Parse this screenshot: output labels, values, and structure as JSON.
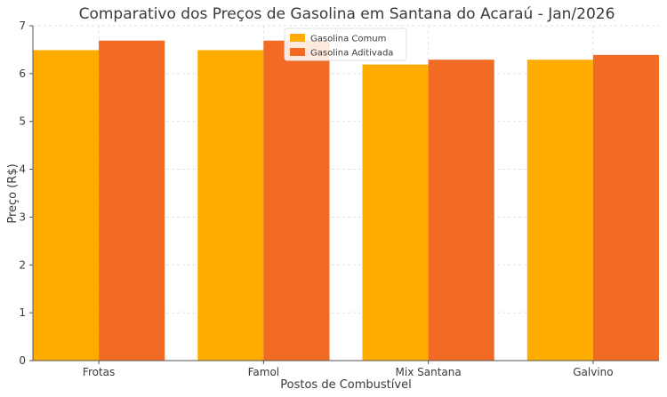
{
  "chart_data": {
    "type": "bar",
    "title": "Comparativo dos Preços de Gasolina em Santana do Acaraú - Jan/2026",
    "xlabel": "Postos de Combustível",
    "ylabel": "Preço (R$)",
    "categories": [
      "Frotas",
      "Famol",
      "Mix Santana",
      "Galvino"
    ],
    "series": [
      {
        "name": "Gasolina Comum",
        "color": "#ffab00",
        "values": [
          6.49,
          6.49,
          6.19,
          6.29
        ]
      },
      {
        "name": "Gasolina Aditivada",
        "color": "#f26b24",
        "values": [
          6.69,
          6.69,
          6.29,
          6.39
        ]
      }
    ],
    "ylim": [
      0,
      7
    ],
    "yticks": [
      0,
      1,
      2,
      3,
      4,
      5,
      6,
      7
    ],
    "grid": true,
    "legend": "top-center"
  }
}
